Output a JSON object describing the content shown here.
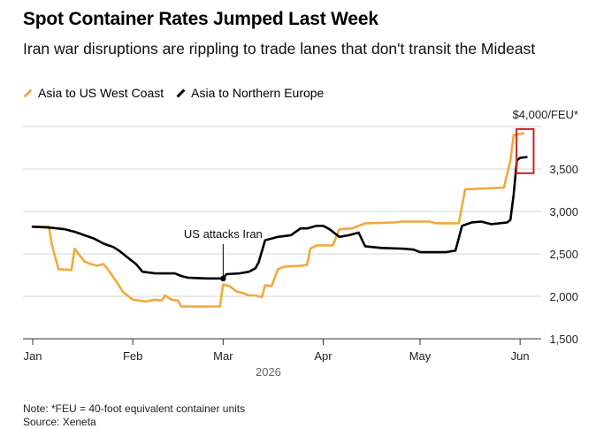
{
  "chart_data": {
    "type": "line",
    "title": "Spot Container Rates Jumped Last Week",
    "subtitle": "Iran war disruptions are rippling to trade lanes that don't transit the Mideast",
    "xlabel": "2026",
    "ylabel": "",
    "x_ticks": [
      "Jan",
      "Feb",
      "Mar",
      "Apr",
      "May",
      "Jun"
    ],
    "y_ticks": [
      {
        "value": 4000,
        "label": "$4,000/FEU*"
      },
      {
        "value": 3500,
        "label": "3,500"
      },
      {
        "value": 3000,
        "label": "3,000"
      },
      {
        "value": 2500,
        "label": "2,500"
      },
      {
        "value": 2000,
        "label": "2,000"
      },
      {
        "value": 1500,
        "label": "1,500"
      }
    ],
    "ylim": [
      1500,
      4000
    ],
    "grid": true,
    "legend_position": "top-left",
    "series": [
      {
        "name": "Asia to US West Coast",
        "color": "#f2a93b",
        "points": [
          [
            "2026-01-01",
            2820
          ],
          [
            "2026-01-06",
            2820
          ],
          [
            "2026-01-07",
            2600
          ],
          [
            "2026-01-09",
            2320
          ],
          [
            "2026-01-13",
            2310
          ],
          [
            "2026-01-14",
            2560
          ],
          [
            "2026-01-17",
            2410
          ],
          [
            "2026-01-19",
            2380
          ],
          [
            "2026-01-21",
            2360
          ],
          [
            "2026-01-23",
            2380
          ],
          [
            "2026-01-25",
            2280
          ],
          [
            "2026-01-27",
            2170
          ],
          [
            "2026-01-29",
            2050
          ],
          [
            "2026-02-01",
            1960
          ],
          [
            "2026-02-05",
            1940
          ],
          [
            "2026-02-08",
            1960
          ],
          [
            "2026-02-10",
            1950
          ],
          [
            "2026-02-11",
            2010
          ],
          [
            "2026-02-13",
            1960
          ],
          [
            "2026-02-15",
            1950
          ],
          [
            "2026-02-16",
            1880
          ],
          [
            "2026-02-28",
            1880
          ],
          [
            "2026-03-01",
            2140
          ],
          [
            "2026-03-03",
            2120
          ],
          [
            "2026-03-05",
            2060
          ],
          [
            "2026-03-07",
            2040
          ],
          [
            "2026-03-09",
            2010
          ],
          [
            "2026-03-11",
            2010
          ],
          [
            "2026-03-13",
            1990
          ],
          [
            "2026-03-14",
            2130
          ],
          [
            "2026-03-16",
            2120
          ],
          [
            "2026-03-18",
            2320
          ],
          [
            "2026-03-20",
            2350
          ],
          [
            "2026-03-25",
            2360
          ],
          [
            "2026-03-27",
            2370
          ],
          [
            "2026-03-28",
            2560
          ],
          [
            "2026-03-30",
            2600
          ],
          [
            "2026-04-04",
            2600
          ],
          [
            "2026-04-06",
            2790
          ],
          [
            "2026-04-10",
            2800
          ],
          [
            "2026-04-12",
            2830
          ],
          [
            "2026-04-14",
            2860
          ],
          [
            "2026-04-23",
            2870
          ],
          [
            "2026-04-25",
            2880
          ],
          [
            "2026-05-04",
            2880
          ],
          [
            "2026-05-06",
            2860
          ],
          [
            "2026-05-13",
            2860
          ],
          [
            "2026-05-15",
            3260
          ],
          [
            "2026-05-27",
            3280
          ],
          [
            "2026-05-29",
            3600
          ],
          [
            "2026-05-30",
            3900
          ],
          [
            "2026-06-02",
            3920
          ]
        ]
      },
      {
        "name": "Asia to Northern Europe",
        "color": "#000000",
        "points": [
          [
            "2026-01-01",
            2820
          ],
          [
            "2026-01-06",
            2810
          ],
          [
            "2026-01-11",
            2790
          ],
          [
            "2026-01-14",
            2760
          ],
          [
            "2026-01-17",
            2720
          ],
          [
            "2026-01-20",
            2680
          ],
          [
            "2026-01-23",
            2620
          ],
          [
            "2026-01-26",
            2580
          ],
          [
            "2026-01-28",
            2530
          ],
          [
            "2026-01-31",
            2440
          ],
          [
            "2026-02-02",
            2380
          ],
          [
            "2026-02-04",
            2290
          ],
          [
            "2026-02-08",
            2270
          ],
          [
            "2026-02-14",
            2270
          ],
          [
            "2026-02-16",
            2240
          ],
          [
            "2026-02-18",
            2220
          ],
          [
            "2026-02-24",
            2210
          ],
          [
            "2026-03-01",
            2210
          ],
          [
            "2026-03-02",
            2260
          ],
          [
            "2026-03-06",
            2270
          ],
          [
            "2026-03-09",
            2290
          ],
          [
            "2026-03-11",
            2330
          ],
          [
            "2026-03-12",
            2400
          ],
          [
            "2026-03-14",
            2660
          ],
          [
            "2026-03-18",
            2700
          ],
          [
            "2026-03-22",
            2720
          ],
          [
            "2026-03-25",
            2800
          ],
          [
            "2026-03-27",
            2800
          ],
          [
            "2026-03-30",
            2830
          ],
          [
            "2026-04-01",
            2830
          ],
          [
            "2026-04-03",
            2790
          ],
          [
            "2026-04-06",
            2700
          ],
          [
            "2026-04-09",
            2720
          ],
          [
            "2026-04-12",
            2750
          ],
          [
            "2026-04-14",
            2590
          ],
          [
            "2026-04-19",
            2570
          ],
          [
            "2026-04-26",
            2560
          ],
          [
            "2026-04-29",
            2550
          ],
          [
            "2026-05-01",
            2520
          ],
          [
            "2026-05-09",
            2520
          ],
          [
            "2026-05-12",
            2540
          ],
          [
            "2026-05-14",
            2830
          ],
          [
            "2026-05-17",
            2870
          ],
          [
            "2026-05-20",
            2880
          ],
          [
            "2026-05-23",
            2850
          ],
          [
            "2026-05-28",
            2870
          ],
          [
            "2026-05-29",
            2900
          ],
          [
            "2026-05-30",
            3200
          ],
          [
            "2026-05-31",
            3600
          ],
          [
            "2026-06-01",
            3630
          ],
          [
            "2026-06-03",
            3640
          ]
        ]
      }
    ],
    "annotations": [
      {
        "text": "US attacks Iran",
        "date": "2026-03-01",
        "value": 2210
      }
    ],
    "highlight": {
      "date_start": "2026-06-01",
      "date_end": "2026-06-03",
      "y_range": [
        3450,
        3970
      ],
      "color": "#cc2222"
    }
  },
  "note": "Note: *FEU = 40-foot equivalent container units",
  "source": "Source: Xeneta"
}
